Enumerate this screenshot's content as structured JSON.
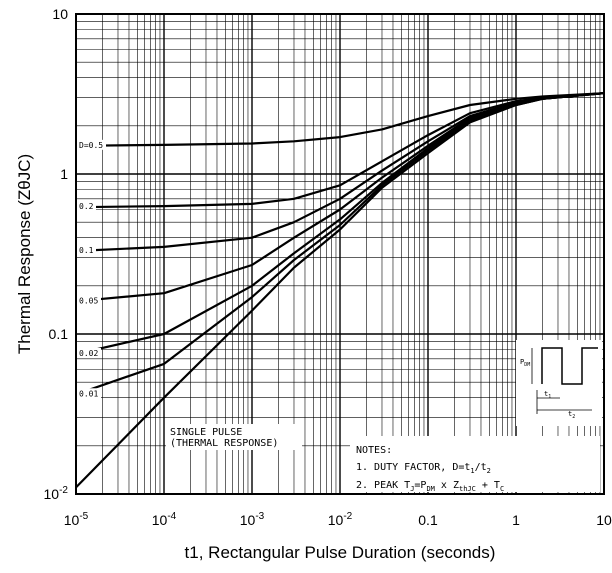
{
  "chart_data": {
    "type": "line",
    "xlabel": "t1, Rectangular Pulse Duration (seconds)",
    "ylabel": "Thermal Response (ZθJC)",
    "xscale": "log",
    "yscale": "log",
    "xlim": [
      1e-05,
      10
    ],
    "ylim": [
      0.01,
      10
    ],
    "grid": true,
    "x_ticks": [
      {
        "base": "10",
        "exp": "-5"
      },
      {
        "base": "10",
        "exp": "-4"
      },
      {
        "base": "10",
        "exp": "-3"
      },
      {
        "base": "10",
        "exp": "-2"
      },
      {
        "base": "0.1",
        "exp": ""
      },
      {
        "base": "1",
        "exp": ""
      },
      {
        "base": "10",
        "exp": ""
      }
    ],
    "y_ticks": [
      {
        "base": "10",
        "exp": "-2"
      },
      {
        "base": "0.1",
        "exp": ""
      },
      {
        "base": "1",
        "exp": ""
      },
      {
        "base": "10",
        "exp": ""
      }
    ],
    "series": [
      {
        "name": "D=0.5",
        "x": [
          1e-05,
          0.0001,
          0.001,
          0.003,
          0.01,
          0.03,
          0.1,
          0.3,
          1,
          2,
          10
        ],
        "y": [
          1.5,
          1.52,
          1.55,
          1.6,
          1.7,
          1.9,
          2.3,
          2.7,
          2.95,
          3.05,
          3.2
        ]
      },
      {
        "name": "D=0.2",
        "x": [
          1e-05,
          0.0001,
          0.001,
          0.003,
          0.01,
          0.03,
          0.1,
          0.3,
          1,
          2,
          10
        ],
        "y": [
          0.62,
          0.63,
          0.65,
          0.7,
          0.85,
          1.2,
          1.75,
          2.4,
          2.85,
          3.0,
          3.2
        ]
      },
      {
        "name": "D=0.1",
        "x": [
          1e-05,
          0.0001,
          0.001,
          0.003,
          0.01,
          0.03,
          0.1,
          0.3,
          1,
          2,
          10
        ],
        "y": [
          0.33,
          0.35,
          0.4,
          0.5,
          0.7,
          1.05,
          1.6,
          2.3,
          2.8,
          3.0,
          3.2
        ]
      },
      {
        "name": "D=0.05",
        "x": [
          1e-05,
          0.0001,
          0.001,
          0.003,
          0.01,
          0.03,
          0.1,
          0.3,
          1,
          2,
          10
        ],
        "y": [
          0.16,
          0.18,
          0.27,
          0.4,
          0.6,
          0.95,
          1.5,
          2.25,
          2.75,
          2.95,
          3.2
        ]
      },
      {
        "name": "D=0.02",
        "x": [
          1e-05,
          0.0001,
          0.001,
          0.003,
          0.01,
          0.03,
          0.1,
          0.3,
          1,
          2,
          10
        ],
        "y": [
          0.075,
          0.1,
          0.2,
          0.32,
          0.52,
          0.88,
          1.45,
          2.2,
          2.75,
          2.95,
          3.2
        ]
      },
      {
        "name": "D=0.01",
        "x": [
          1e-05,
          0.0001,
          0.001,
          0.003,
          0.01,
          0.03,
          0.1,
          0.3,
          1,
          2,
          10
        ],
        "y": [
          0.042,
          0.065,
          0.17,
          0.29,
          0.48,
          0.85,
          1.4,
          2.15,
          2.7,
          2.95,
          3.2
        ]
      },
      {
        "name": "SINGLE PULSE (THERMAL RESPONSE)",
        "x": [
          1e-05,
          0.0001,
          0.001,
          0.003,
          0.01,
          0.03,
          0.1,
          0.3,
          1,
          2,
          10
        ],
        "y": [
          0.011,
          0.04,
          0.14,
          0.26,
          0.45,
          0.82,
          1.35,
          2.1,
          2.7,
          2.95,
          3.2
        ]
      }
    ],
    "curve_labels": [
      "D=0.5",
      "0.2",
      "0.1",
      "0.05",
      "0.02",
      "0.01"
    ],
    "single_pulse_label": [
      "SINGLE PULSE",
      "(THERMAL RESPONSE)"
    ],
    "notes": {
      "heading": "NOTES:",
      "line1": "1. DUTY FACTOR, D=t",
      "line1_sub1": "1",
      "line1_mid": "/t",
      "line1_sub2": "2",
      "line2_prefix": "2. PEAK T",
      "line2_sub_j": "J",
      "line2_mid1": "=P",
      "line2_sub_dm": "DM",
      "line2_mid2": " x Z",
      "line2_sub_th": "thJC",
      "line2_mid3": " + T",
      "line2_sub_c": "C"
    },
    "inset": {
      "pdm_label": "P",
      "pdm_sub": "DM",
      "t1_label": "t",
      "t1_sub": "1",
      "t2_label": "t",
      "t2_sub": "2"
    }
  }
}
